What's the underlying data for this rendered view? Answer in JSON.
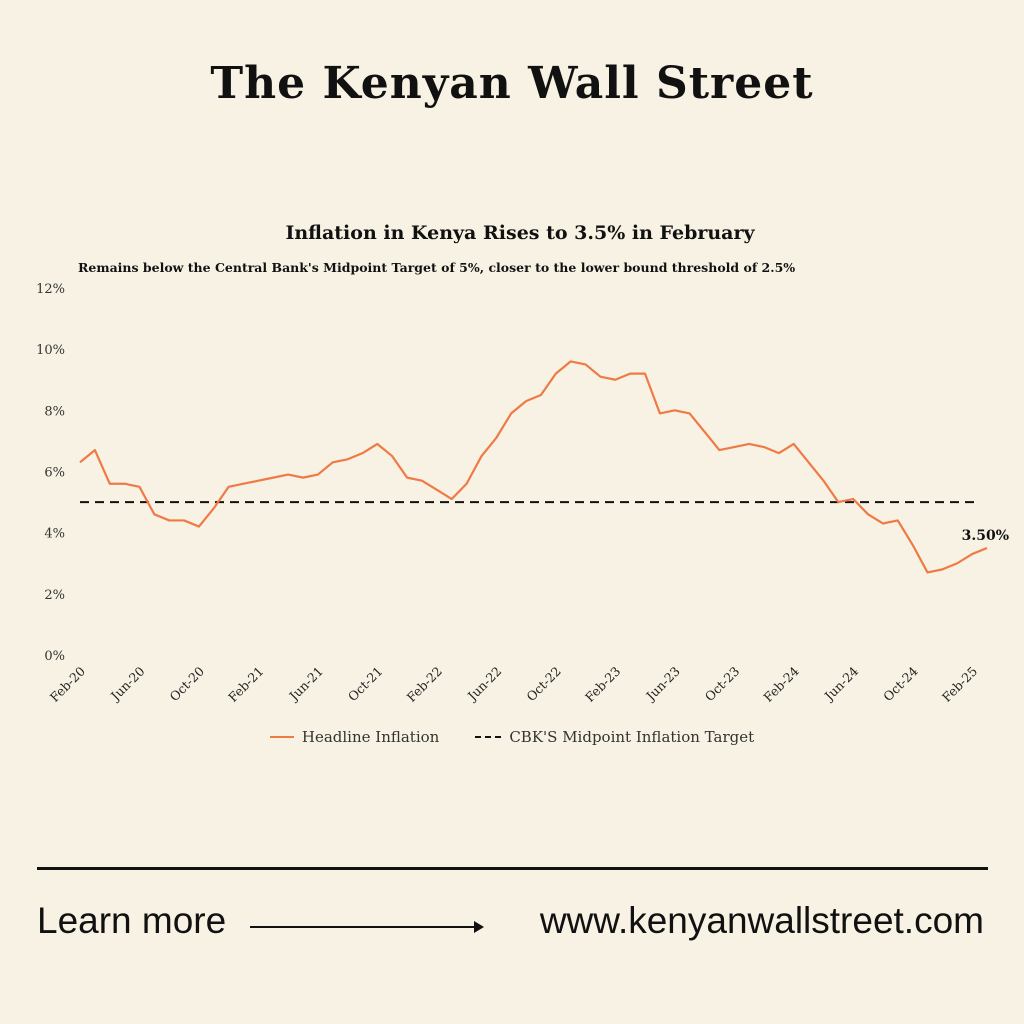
{
  "masthead": "The Kenyan Wall Street",
  "footer": {
    "learn_more": "Learn more",
    "url": "www.kenyanwallstreet.com"
  },
  "chart_data": {
    "type": "line",
    "title": "Inflation in Kenya Rises to 3.5% in February",
    "subtitle": "Remains below the Central Bank's Midpoint Target of 5%, closer to the lower bound threshold of 2.5%",
    "xlabel": "",
    "ylabel": "",
    "ylim": [
      0,
      12
    ],
    "yticks": [
      "0%",
      "2%",
      "4%",
      "6%",
      "8%",
      "10%",
      "12%"
    ],
    "xtick_labels": [
      "Feb-20",
      "Jun-20",
      "Oct-20",
      "Feb-21",
      "Jun-21",
      "Oct-21",
      "Feb-22",
      "Jun-22",
      "Oct-22",
      "Feb-23",
      "Jun-23",
      "Oct-23",
      "Feb-24",
      "Jun-24",
      "Oct-24",
      "Feb-25"
    ],
    "x_range": [
      "Feb-20",
      "Feb-25"
    ],
    "grid": false,
    "legend": "bottom",
    "annotation": "3.50%",
    "series": [
      {
        "name": "Headline Inflation",
        "color": "#ef7a45",
        "style": "solid",
        "values": [
          6.3,
          6.7,
          5.6,
          5.6,
          5.5,
          4.6,
          4.4,
          4.4,
          4.2,
          4.8,
          5.5,
          5.6,
          5.7,
          5.8,
          5.9,
          5.8,
          5.9,
          6.3,
          6.4,
          6.6,
          6.9,
          6.5,
          5.8,
          5.7,
          5.4,
          5.1,
          5.6,
          6.5,
          7.1,
          7.9,
          8.3,
          8.5,
          9.2,
          9.6,
          9.5,
          9.1,
          9.0,
          9.2,
          9.2,
          7.9,
          8.0,
          7.9,
          7.3,
          6.7,
          6.8,
          6.9,
          6.8,
          6.6,
          6.9,
          6.3,
          5.7,
          5.0,
          5.1,
          4.6,
          4.3,
          4.4,
          3.6,
          2.7,
          2.8,
          3.0,
          3.3,
          3.5
        ]
      },
      {
        "name": "CBK'S Midpoint Inflation Target",
        "color": "#111111",
        "style": "dashed",
        "values": [
          5,
          5
        ]
      }
    ]
  }
}
